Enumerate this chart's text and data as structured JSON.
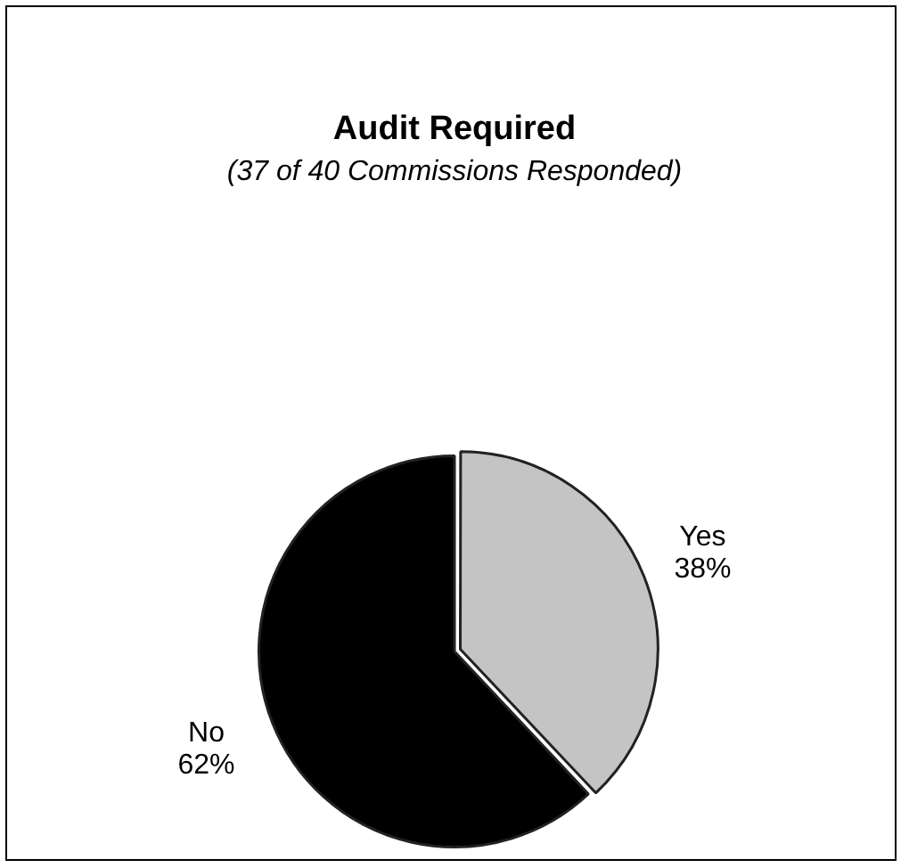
{
  "chart_data": {
    "type": "pie",
    "title": "Audit Required",
    "subtitle": "(37 of 40 Commissions Responded)",
    "categories": [
      "Yes",
      "No"
    ],
    "values": [
      38,
      62
    ],
    "colors": [
      "#c4c4c4",
      "#000000"
    ],
    "value_labels": [
      "38%",
      "62%"
    ],
    "legend": false
  }
}
